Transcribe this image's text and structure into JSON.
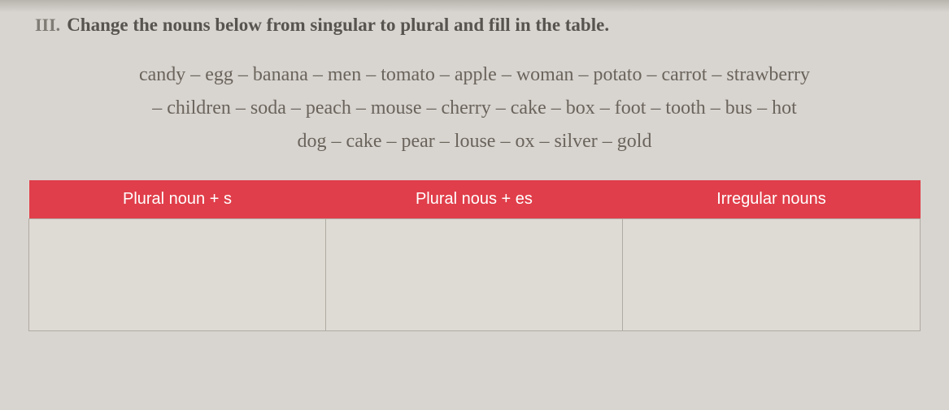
{
  "section": {
    "number": "III.",
    "instruction": "Change the nouns below from singular to plural and fill in the table."
  },
  "wordbank": {
    "line1": "candy – egg – banana – men – tomato – apple – woman – potato – carrot – strawberry",
    "line2": "– children – soda – peach – mouse – cherry – cake – box – foot – tooth – bus – hot",
    "line3": "dog – cake – pear – louse – ox – silver – gold"
  },
  "table": {
    "headers": {
      "col1": "Plural noun + s",
      "col2": "Plural nous + es",
      "col3": "Irregular nouns"
    },
    "cells": {
      "c1": "",
      "c2": "",
      "c3": ""
    },
    "header_bg": "#e03e4a",
    "header_fg": "#ffffff",
    "border_color": "#b0aba3",
    "cell_bg": "#dedad4"
  },
  "page_bg": "#d8d4cf"
}
